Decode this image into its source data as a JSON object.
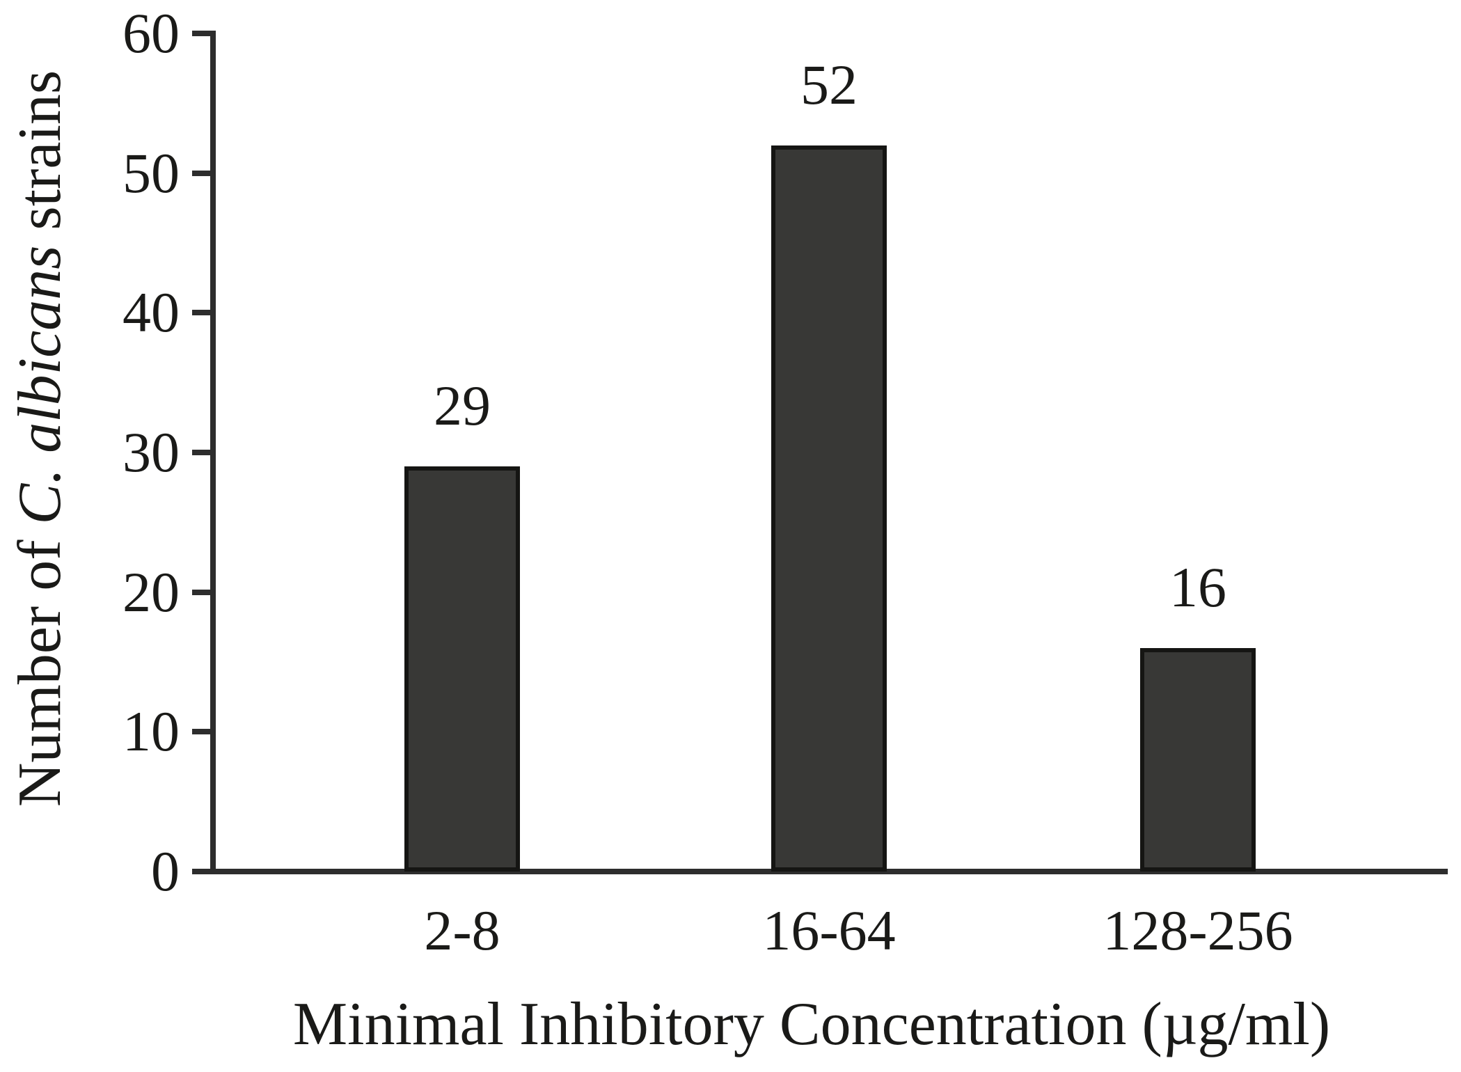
{
  "chart_data": {
    "type": "bar",
    "categories": [
      "2-8",
      "16-64",
      "128-256"
    ],
    "values": [
      29,
      52,
      16
    ],
    "title": "",
    "xlabel": "Minimal Inhibitory Concentration (µg/ml)",
    "ylabel": "Number of C. albicans strains",
    "ylabel_parts": {
      "prefix": "Number of ",
      "italic": "C. albicans",
      "suffix": " strains"
    },
    "ylim": [
      0,
      60
    ],
    "yticks": [
      0,
      10,
      20,
      30,
      40,
      50,
      60
    ],
    "grid": false,
    "legend_position": "none",
    "bar_color": "#383836",
    "bar_border_color": "#151513",
    "axis_color": "#2d2d2d",
    "text_color": "#1a1a18",
    "background_color": "#ffffff"
  }
}
